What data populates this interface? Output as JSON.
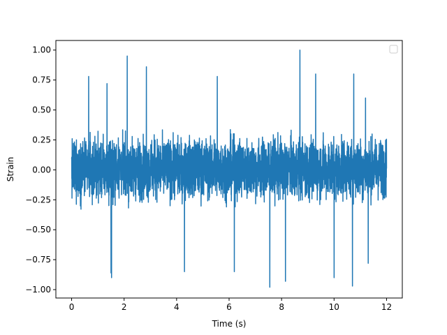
{
  "chart_data": {
    "type": "line",
    "title": "",
    "xlabel": "Time (s)",
    "ylabel": "Strain",
    "xlim": [
      -0.6,
      12.6
    ],
    "ylim": [
      -1.07,
      1.08
    ],
    "xticks": [
      0,
      2,
      4,
      6,
      8,
      10,
      12
    ],
    "xtick_labels": [
      "0",
      "2",
      "4",
      "6",
      "8",
      "10",
      "12"
    ],
    "yticks": [
      -1.0,
      -0.75,
      -0.5,
      -0.25,
      0.0,
      0.25,
      0.5,
      0.75,
      1.0
    ],
    "ytick_labels": [
      "−1.00",
      "−0.75",
      "−0.50",
      "−0.25",
      "0.00",
      "0.25",
      "0.50",
      "0.75",
      "1.00"
    ],
    "grid": false,
    "legend": {
      "placement": "top-right",
      "entries": []
    },
    "series": [
      {
        "color": "#1f77b4",
        "x_range": [
          0,
          12
        ],
        "typical_band": [
          -0.42,
          0.44
        ],
        "peaks": [
          {
            "x": 0.65,
            "y": 0.78
          },
          {
            "x": 1.35,
            "y": 0.72
          },
          {
            "x": 2.12,
            "y": 0.95
          },
          {
            "x": 2.85,
            "y": 0.86
          },
          {
            "x": 5.55,
            "y": 0.78
          },
          {
            "x": 8.7,
            "y": 1.0
          },
          {
            "x": 9.3,
            "y": 0.8
          },
          {
            "x": 10.75,
            "y": 0.8
          },
          {
            "x": 11.2,
            "y": 0.6
          }
        ],
        "troughs": [
          {
            "x": 1.5,
            "y": -0.86
          },
          {
            "x": 1.52,
            "y": -0.9
          },
          {
            "x": 4.3,
            "y": -0.85
          },
          {
            "x": 6.2,
            "y": -0.85
          },
          {
            "x": 7.55,
            "y": -0.98
          },
          {
            "x": 8.15,
            "y": -0.93
          },
          {
            "x": 10.0,
            "y": -0.9
          },
          {
            "x": 10.7,
            "y": -0.97
          },
          {
            "x": 11.3,
            "y": -0.78
          }
        ]
      }
    ]
  }
}
